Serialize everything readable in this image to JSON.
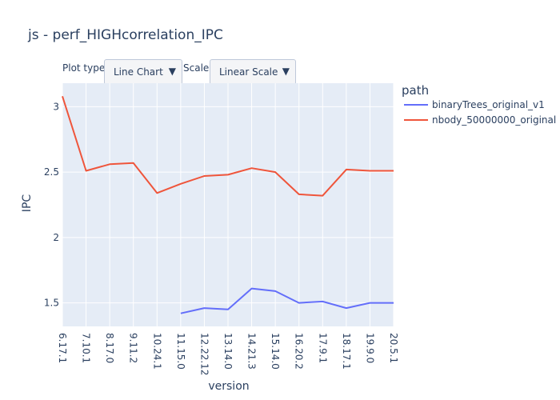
{
  "colors": {
    "plot_bg": "#e5ecf6",
    "grid": "#ffffff",
    "text": "#2a3f5f",
    "series_blue": "#636efa",
    "series_red": "#ef553b"
  },
  "controls": {
    "plot_type_label": "Plot type:",
    "plot_type_value": "Line Chart",
    "scale_label": "Scale:",
    "scale_value": "Linear Scale",
    "caret_icon": "▼"
  },
  "legend": {
    "title": "path",
    "items": [
      {
        "label": "binaryTrees_original_v1"
      },
      {
        "label": "nbody_50000000_original"
      }
    ]
  },
  "chart_data": {
    "type": "line",
    "title": "js - perf_HIGHcorrelation_IPC",
    "xlabel": "version",
    "ylabel": "IPC",
    "categories": [
      "6.17.1",
      "7.10.1",
      "8.17.0",
      "9.11.2",
      "10.24.1",
      "11.15.0",
      "12.22.12",
      "13.14.0",
      "14.21.3",
      "15.14.0",
      "16.20.2",
      "17.9.1",
      "18.17.1",
      "19.9.0",
      "20.5.1"
    ],
    "ylim": [
      1.32,
      3.18
    ],
    "yticks": [
      1.5,
      2,
      2.5,
      3
    ],
    "ytick_labels": [
      "1.5",
      "2",
      "2.5",
      "3"
    ],
    "grid": true,
    "legend_position": "right",
    "series": [
      {
        "name": "binaryTrees_original_v1",
        "color": "#636efa",
        "values": [
          null,
          null,
          null,
          null,
          null,
          1.42,
          1.46,
          1.45,
          1.61,
          1.59,
          1.5,
          1.51,
          1.46,
          1.5,
          1.5
        ]
      },
      {
        "name": "nbody_50000000_original",
        "color": "#ef553b",
        "values": [
          3.08,
          2.51,
          2.56,
          2.57,
          2.34,
          2.41,
          2.47,
          2.48,
          2.53,
          2.5,
          2.33,
          2.32,
          2.52,
          2.51,
          2.51
        ]
      }
    ]
  }
}
